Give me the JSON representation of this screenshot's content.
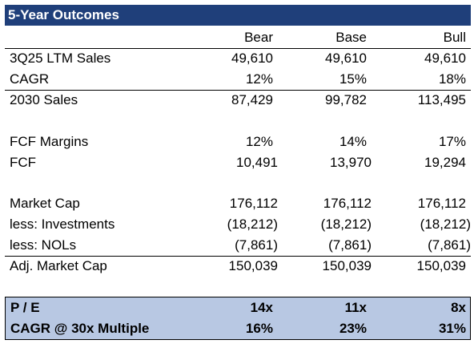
{
  "title": "5-Year Outcomes",
  "columns": [
    "Bear",
    "Base",
    "Bull"
  ],
  "rows": {
    "ltm_sales": {
      "label": "3Q25 LTM Sales",
      "values": [
        "49,610",
        "49,610",
        "49,610"
      ]
    },
    "cagr": {
      "label": "CAGR",
      "values": [
        "12%",
        "15%",
        "18%"
      ]
    },
    "sales_2030": {
      "label": "2030 Sales",
      "values": [
        "87,429",
        "99,782",
        "113,495"
      ]
    },
    "fcf_margins": {
      "label": "FCF Margins",
      "values": [
        "12%",
        "14%",
        "17%"
      ]
    },
    "fcf": {
      "label": "FCF",
      "values": [
        "10,491",
        "13,970",
        "19,294"
      ]
    },
    "market_cap": {
      "label": "Market Cap",
      "values": [
        "176,112",
        "176,112",
        "176,112"
      ]
    },
    "investments": {
      "label": "less: Investments",
      "values": [
        "(18,212)",
        "(18,212)",
        "(18,212)"
      ]
    },
    "nols": {
      "label": "less: NOLs",
      "values": [
        "(7,861)",
        "(7,861)",
        "(7,861)"
      ]
    },
    "adj_market_cap": {
      "label": "Adj. Market Cap",
      "values": [
        "150,039",
        "150,039",
        "150,039"
      ]
    }
  },
  "summary": {
    "pe": {
      "label": "P / E",
      "values": [
        "14x",
        "11x",
        "8x"
      ]
    },
    "cagr_multiple": {
      "label": "CAGR @ 30x Multiple",
      "values": [
        "16%",
        "23%",
        "31%"
      ]
    }
  }
}
